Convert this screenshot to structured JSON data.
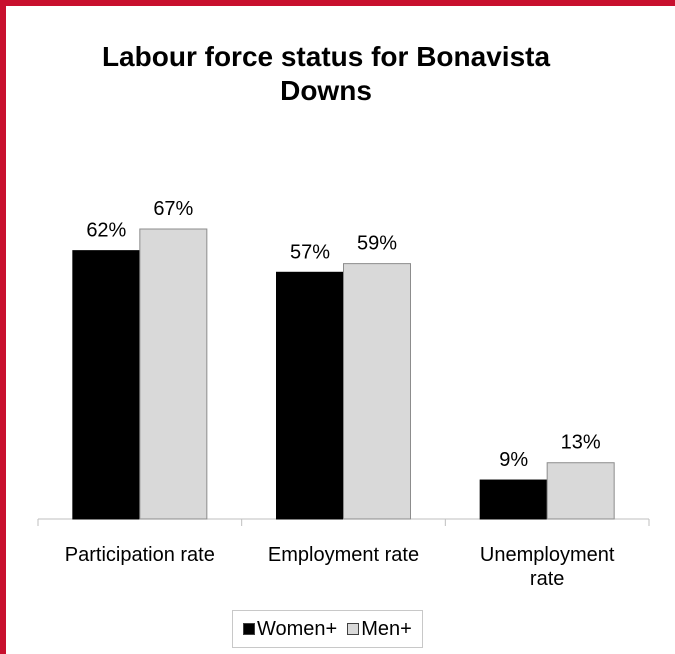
{
  "chart_data": {
    "type": "bar",
    "title": "Labour force status for Bonavista Downs",
    "categories": [
      [
        "Participation rate"
      ],
      [
        "Employment rate"
      ],
      [
        "Unemployment",
        "rate"
      ]
    ],
    "series": [
      {
        "name": "Women+",
        "values": [
          62,
          57,
          9
        ],
        "labels": [
          "62%",
          "57%",
          "9%"
        ],
        "color": "#000000"
      },
      {
        "name": "Men+",
        "values": [
          67,
          59,
          13
        ],
        "labels": [
          "67%",
          "59%",
          "13%"
        ],
        "color": "#d9d9d9"
      }
    ],
    "xlabel": "",
    "ylabel": "",
    "ylim": [
      0,
      67
    ],
    "grid": false,
    "legend_position": "bottom"
  },
  "colors": {
    "frame_accent": "#c8102e",
    "axis": "#bfbfbf",
    "bar_outline": "#8c8c8c"
  }
}
